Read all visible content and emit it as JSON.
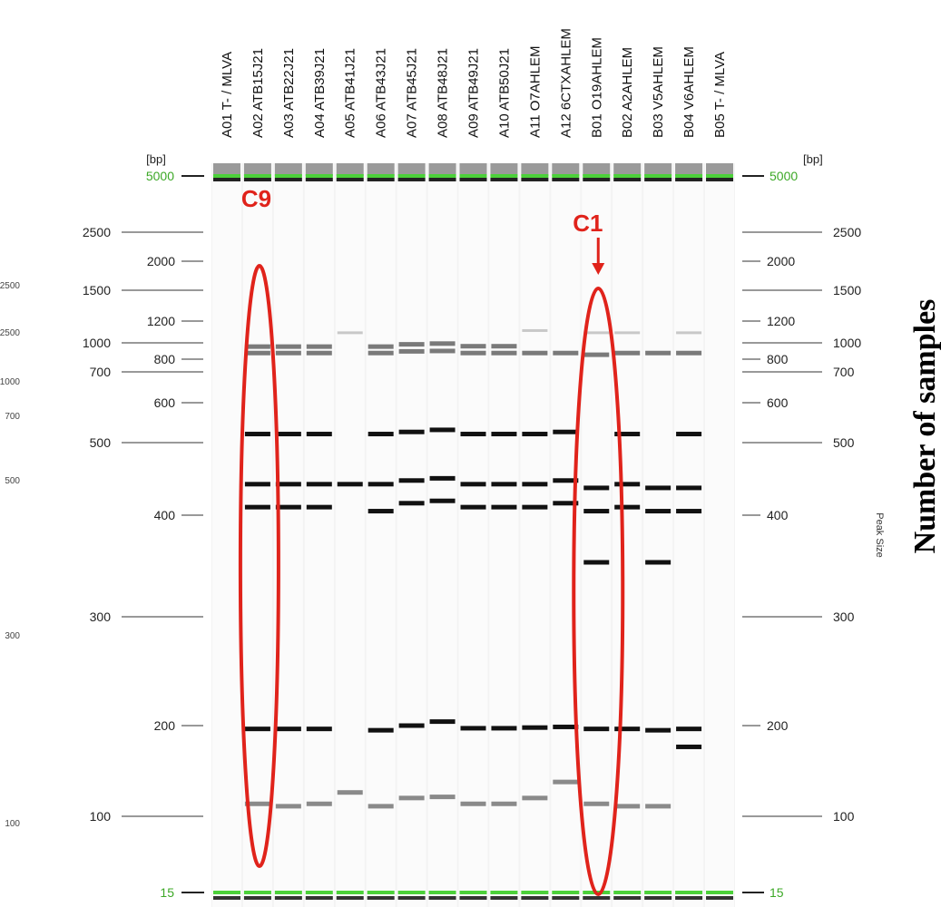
{
  "figure": {
    "side_title": "Number of samples",
    "peak_size_label": "Peak Size",
    "bp_unit": "[bp]",
    "marker_upper_label": "5000",
    "marker_lower_label": "15",
    "clusters": [
      {
        "label": "C9"
      },
      {
        "label": "C1"
      }
    ]
  },
  "chart_data": {
    "type": "gel",
    "lanes": [
      "A01 T- / MLVA",
      "A02 ATB15J21",
      "A03 ATB22J21",
      "A04 ATB39J21",
      "A05 ATB41J21",
      "A06 ATB43J21",
      "A07 ATB45J21",
      "A08 ATB48J21",
      "A09 ATB49J21",
      "A10 ATB50J21",
      "A11 O7AHLEM",
      "A12 6CTXAHLEM",
      "B01 O19AHLEM",
      "B02 A2AHLEM",
      "B03 V5AHLEM",
      "B04 V6AHLEM",
      "B05 T- / MLVA"
    ],
    "size_ticks_bp": [
      2500,
      2000,
      1500,
      1200,
      1000,
      800,
      700,
      600,
      500,
      400,
      300,
      200,
      100
    ],
    "left_edge_ticks": [
      "2500",
      "2500",
      "1000",
      "700",
      "500",
      "300",
      "300",
      "100"
    ],
    "marker_bp": [
      5000,
      15
    ],
    "bands_bp": [
      [],
      [
        950,
        870,
        520,
        440,
        410,
        195,
        110
      ],
      [
        950,
        870,
        520,
        440,
        410,
        195,
        108
      ],
      [
        950,
        870,
        520,
        440,
        410,
        195,
        110
      ],
      [
        1080,
        440,
        120
      ],
      [
        950,
        870,
        520,
        440,
        405,
        193,
        108
      ],
      [
        980,
        890,
        525,
        445,
        415,
        200,
        115
      ],
      [
        990,
        895,
        530,
        448,
        418,
        203,
        116
      ],
      [
        955,
        870,
        520,
        440,
        410,
        196,
        110
      ],
      [
        955,
        870,
        520,
        440,
        410,
        196,
        110
      ],
      [
        1100,
        870,
        520,
        440,
        410,
        197,
        115
      ],
      [
        870,
        525,
        445,
        415,
        198,
        130
      ],
      [
        1080,
        850,
        435,
        405,
        350,
        195,
        110
      ],
      [
        1080,
        870,
        520,
        440,
        410,
        195,
        108
      ],
      [
        870,
        435,
        405,
        350,
        193,
        108
      ],
      [
        1080,
        870,
        520,
        435,
        405,
        195,
        170
      ],
      []
    ]
  }
}
